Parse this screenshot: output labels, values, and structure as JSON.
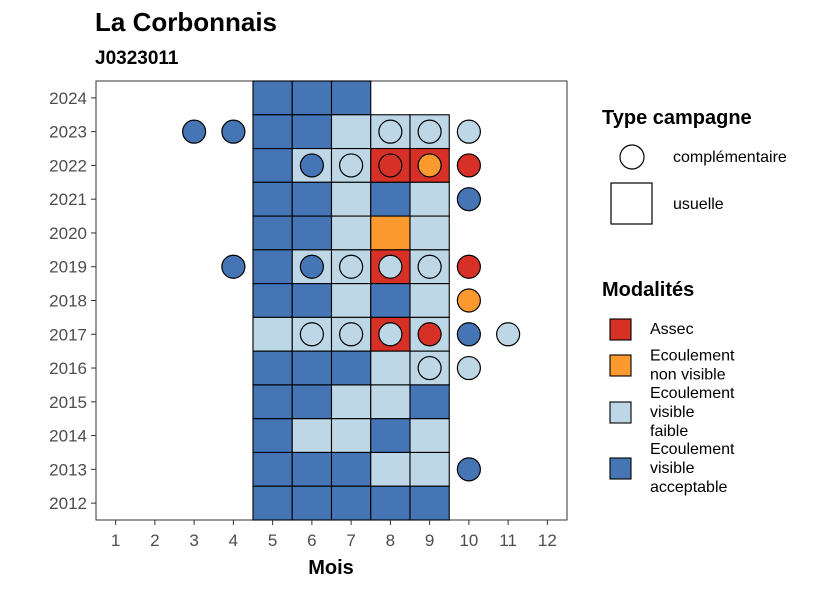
{
  "title": "La Corbonnais",
  "subtitle": "J0323011",
  "chart_data": {
    "type": "heatmap",
    "title": "La Corbonnais",
    "subtitle": "J0323011",
    "xlabel": "Mois",
    "ylabel": "",
    "x_ticks": [
      "1",
      "2",
      "3",
      "4",
      "5",
      "6",
      "7",
      "8",
      "9",
      "10",
      "11",
      "12"
    ],
    "y_ticks": [
      "2012",
      "2013",
      "2014",
      "2015",
      "2016",
      "2017",
      "2018",
      "2019",
      "2020",
      "2021",
      "2022",
      "2023",
      "2024"
    ],
    "xlim": [
      0.5,
      12.5
    ],
    "ylim": [
      2011.5,
      2024.5
    ],
    "grid": false,
    "legend_placement": "right",
    "colors": {
      "Assec": "#d73027",
      "Ecoulement non visible": "#fd9a2f",
      "Ecoulement visible faible": "#bdd7e7",
      "Ecoulement visible acceptable": "#4575b4"
    },
    "legend_type": {
      "title": "Type campagne",
      "items": [
        {
          "label": "complémentaire",
          "shape": "circle"
        },
        {
          "label": "usuelle",
          "shape": "square"
        }
      ]
    },
    "legend_modalites": {
      "title": "Modalités",
      "items": [
        {
          "key": "Assec",
          "lines": [
            "Assec"
          ]
        },
        {
          "key": "Ecoulement non visible",
          "lines": [
            "Ecoulement",
            "non visible"
          ]
        },
        {
          "key": "Ecoulement visible faible",
          "lines": [
            "Ecoulement",
            "visible",
            "faible"
          ]
        },
        {
          "key": "Ecoulement visible acceptable",
          "lines": [
            "Ecoulement",
            "visible",
            "acceptable"
          ]
        }
      ]
    },
    "usuelle": [
      {
        "year": 2024,
        "month": 5,
        "m": "Ecoulement visible acceptable"
      },
      {
        "year": 2024,
        "month": 6,
        "m": "Ecoulement visible acceptable"
      },
      {
        "year": 2024,
        "month": 7,
        "m": "Ecoulement visible acceptable"
      },
      {
        "year": 2023,
        "month": 5,
        "m": "Ecoulement visible acceptable"
      },
      {
        "year": 2023,
        "month": 6,
        "m": "Ecoulement visible acceptable"
      },
      {
        "year": 2023,
        "month": 7,
        "m": "Ecoulement visible faible"
      },
      {
        "year": 2023,
        "month": 8,
        "m": "Ecoulement visible faible"
      },
      {
        "year": 2023,
        "month": 9,
        "m": "Ecoulement visible faible"
      },
      {
        "year": 2022,
        "month": 5,
        "m": "Ecoulement visible acceptable"
      },
      {
        "year": 2022,
        "month": 6,
        "m": "Ecoulement visible faible"
      },
      {
        "year": 2022,
        "month": 7,
        "m": "Ecoulement visible faible"
      },
      {
        "year": 2022,
        "month": 8,
        "m": "Assec"
      },
      {
        "year": 2022,
        "month": 9,
        "m": "Assec"
      },
      {
        "year": 2021,
        "month": 5,
        "m": "Ecoulement visible acceptable"
      },
      {
        "year": 2021,
        "month": 6,
        "m": "Ecoulement visible acceptable"
      },
      {
        "year": 2021,
        "month": 7,
        "m": "Ecoulement visible faible"
      },
      {
        "year": 2021,
        "month": 8,
        "m": "Ecoulement visible acceptable"
      },
      {
        "year": 2021,
        "month": 9,
        "m": "Ecoulement visible faible"
      },
      {
        "year": 2020,
        "month": 5,
        "m": "Ecoulement visible acceptable"
      },
      {
        "year": 2020,
        "month": 6,
        "m": "Ecoulement visible acceptable"
      },
      {
        "year": 2020,
        "month": 7,
        "m": "Ecoulement visible faible"
      },
      {
        "year": 2020,
        "month": 8,
        "m": "Ecoulement non visible"
      },
      {
        "year": 2020,
        "month": 9,
        "m": "Ecoulement visible faible"
      },
      {
        "year": 2019,
        "month": 5,
        "m": "Ecoulement visible acceptable"
      },
      {
        "year": 2019,
        "month": 6,
        "m": "Ecoulement visible faible"
      },
      {
        "year": 2019,
        "month": 7,
        "m": "Ecoulement visible faible"
      },
      {
        "year": 2019,
        "month": 8,
        "m": "Assec"
      },
      {
        "year": 2019,
        "month": 9,
        "m": "Ecoulement visible faible"
      },
      {
        "year": 2018,
        "month": 5,
        "m": "Ecoulement visible acceptable"
      },
      {
        "year": 2018,
        "month": 6,
        "m": "Ecoulement visible acceptable"
      },
      {
        "year": 2018,
        "month": 7,
        "m": "Ecoulement visible faible"
      },
      {
        "year": 2018,
        "month": 8,
        "m": "Ecoulement visible acceptable"
      },
      {
        "year": 2018,
        "month": 9,
        "m": "Ecoulement visible faible"
      },
      {
        "year": 2017,
        "month": 5,
        "m": "Ecoulement visible faible"
      },
      {
        "year": 2017,
        "month": 6,
        "m": "Ecoulement visible faible"
      },
      {
        "year": 2017,
        "month": 7,
        "m": "Ecoulement visible faible"
      },
      {
        "year": 2017,
        "month": 8,
        "m": "Assec"
      },
      {
        "year": 2017,
        "month": 9,
        "m": "Ecoulement visible faible"
      },
      {
        "year": 2016,
        "month": 5,
        "m": "Ecoulement visible acceptable"
      },
      {
        "year": 2016,
        "month": 6,
        "m": "Ecoulement visible acceptable"
      },
      {
        "year": 2016,
        "month": 7,
        "m": "Ecoulement visible acceptable"
      },
      {
        "year": 2016,
        "month": 8,
        "m": "Ecoulement visible faible"
      },
      {
        "year": 2016,
        "month": 9,
        "m": "Ecoulement visible faible"
      },
      {
        "year": 2015,
        "month": 5,
        "m": "Ecoulement visible acceptable"
      },
      {
        "year": 2015,
        "month": 6,
        "m": "Ecoulement visible acceptable"
      },
      {
        "year": 2015,
        "month": 7,
        "m": "Ecoulement visible faible"
      },
      {
        "year": 2015,
        "month": 8,
        "m": "Ecoulement visible faible"
      },
      {
        "year": 2015,
        "month": 9,
        "m": "Ecoulement visible acceptable"
      },
      {
        "year": 2014,
        "month": 5,
        "m": "Ecoulement visible acceptable"
      },
      {
        "year": 2014,
        "month": 6,
        "m": "Ecoulement visible faible"
      },
      {
        "year": 2014,
        "month": 7,
        "m": "Ecoulement visible faible"
      },
      {
        "year": 2014,
        "month": 8,
        "m": "Ecoulement visible acceptable"
      },
      {
        "year": 2014,
        "month": 9,
        "m": "Ecoulement visible faible"
      },
      {
        "year": 2013,
        "month": 5,
        "m": "Ecoulement visible acceptable"
      },
      {
        "year": 2013,
        "month": 6,
        "m": "Ecoulement visible acceptable"
      },
      {
        "year": 2013,
        "month": 7,
        "m": "Ecoulement visible acceptable"
      },
      {
        "year": 2013,
        "month": 8,
        "m": "Ecoulement visible faible"
      },
      {
        "year": 2013,
        "month": 9,
        "m": "Ecoulement visible faible"
      },
      {
        "year": 2012,
        "month": 5,
        "m": "Ecoulement visible acceptable"
      },
      {
        "year": 2012,
        "month": 6,
        "m": "Ecoulement visible acceptable"
      },
      {
        "year": 2012,
        "month": 7,
        "m": "Ecoulement visible acceptable"
      },
      {
        "year": 2012,
        "month": 8,
        "m": "Ecoulement visible acceptable"
      },
      {
        "year": 2012,
        "month": 9,
        "m": "Ecoulement visible acceptable"
      }
    ],
    "complementaire": [
      {
        "year": 2023,
        "month": 3,
        "m": "Ecoulement visible acceptable"
      },
      {
        "year": 2023,
        "month": 4,
        "m": "Ecoulement visible acceptable"
      },
      {
        "year": 2023,
        "month": 8,
        "m": "Ecoulement visible faible"
      },
      {
        "year": 2023,
        "month": 9,
        "m": "Ecoulement visible faible"
      },
      {
        "year": 2023,
        "month": 10,
        "m": "Ecoulement visible faible"
      },
      {
        "year": 2022,
        "month": 6,
        "m": "Ecoulement visible acceptable"
      },
      {
        "year": 2022,
        "month": 7,
        "m": "Ecoulement visible faible"
      },
      {
        "year": 2022,
        "month": 8,
        "m": "Assec"
      },
      {
        "year": 2022,
        "month": 9,
        "m": "Ecoulement non visible"
      },
      {
        "year": 2022,
        "month": 10,
        "m": "Assec"
      },
      {
        "year": 2021,
        "month": 10,
        "m": "Ecoulement visible acceptable"
      },
      {
        "year": 2019,
        "month": 4,
        "m": "Ecoulement visible acceptable"
      },
      {
        "year": 2019,
        "month": 6,
        "m": "Ecoulement visible acceptable"
      },
      {
        "year": 2019,
        "month": 7,
        "m": "Ecoulement visible faible"
      },
      {
        "year": 2019,
        "month": 8,
        "m": "Ecoulement visible faible"
      },
      {
        "year": 2019,
        "month": 9,
        "m": "Ecoulement visible faible"
      },
      {
        "year": 2019,
        "month": 10,
        "m": "Assec"
      },
      {
        "year": 2018,
        "month": 10,
        "m": "Ecoulement non visible"
      },
      {
        "year": 2017,
        "month": 6,
        "m": "Ecoulement visible faible"
      },
      {
        "year": 2017,
        "month": 7,
        "m": "Ecoulement visible faible"
      },
      {
        "year": 2017,
        "month": 8,
        "m": "Ecoulement visible faible"
      },
      {
        "year": 2017,
        "month": 9,
        "m": "Assec"
      },
      {
        "year": 2017,
        "month": 10,
        "m": "Ecoulement visible acceptable"
      },
      {
        "year": 2017,
        "month": 11,
        "m": "Ecoulement visible faible"
      },
      {
        "year": 2016,
        "month": 9,
        "m": "Ecoulement visible faible"
      },
      {
        "year": 2016,
        "month": 10,
        "m": "Ecoulement visible faible"
      },
      {
        "year": 2013,
        "month": 10,
        "m": "Ecoulement visible acceptable"
      }
    ]
  }
}
